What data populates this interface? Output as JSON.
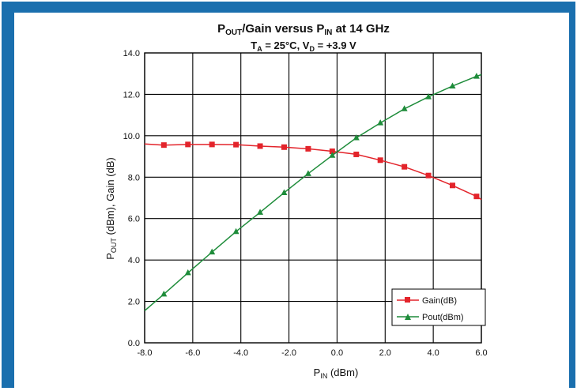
{
  "colors": {
    "frame": "#1a6fae",
    "gain": "#e3242b",
    "pout": "#1e8c3a",
    "grid": "#000000"
  },
  "chart_data": {
    "type": "line",
    "title": "P_OUT/Gain versus P_IN at 14 GHz",
    "title_parts": {
      "p": "P",
      "out_sub": "OUT",
      "mid": "/Gain versus P",
      "in_sub": "IN",
      "tail": " at 14 GHz"
    },
    "subtitle_parts": {
      "t": "T",
      "a_sub": "A",
      "t_tail": " = 25°C, V",
      "d_sub": "D",
      "tail": " = +3.9 V"
    },
    "xlabel_parts": {
      "p": "P",
      "sub": "IN",
      "tail": " (dBm)"
    },
    "ylabel_parts": {
      "p": "P",
      "sub": "OUT",
      "tail": " (dBm), Gain (dB)"
    },
    "xlim": [
      -8,
      6
    ],
    "ylim": [
      0,
      14
    ],
    "x_ticks": [
      "-8.0",
      "-6.0",
      "-4.0",
      "-2.0",
      "0.0",
      "2.0",
      "4.0",
      "6.0"
    ],
    "y_ticks": [
      "0.0",
      "2.0",
      "4.0",
      "6.0",
      "8.0",
      "10.0",
      "12.0",
      "14.0"
    ],
    "grid": true,
    "legend_position": "lower-right",
    "series": [
      {
        "name": "Gain(dB)",
        "marker": "square",
        "color": "#e3242b",
        "curve_x": [
          -8.0,
          -7.2,
          -6.2,
          -5.2,
          -4.2,
          -3.2,
          -2.2,
          -1.2,
          -0.2,
          0.8,
          1.8,
          2.8,
          3.8,
          4.8,
          5.8,
          6.0
        ],
        "curve_y": [
          9.6,
          9.55,
          9.58,
          9.58,
          9.57,
          9.5,
          9.45,
          9.37,
          9.25,
          9.1,
          8.82,
          8.5,
          8.08,
          7.6,
          7.07,
          6.92
        ],
        "marker_x": [
          -7.2,
          -6.2,
          -5.2,
          -4.2,
          -3.2,
          -2.2,
          -1.2,
          -0.2,
          0.8,
          1.8,
          2.8,
          3.8,
          4.8,
          5.8
        ],
        "marker_y": [
          9.55,
          9.58,
          9.58,
          9.57,
          9.5,
          9.45,
          9.37,
          9.25,
          9.1,
          8.82,
          8.5,
          8.08,
          7.6,
          7.07
        ]
      },
      {
        "name": "Pout(dBm)",
        "marker": "triangle",
        "color": "#1e8c3a",
        "curve_x": [
          -8.0,
          -7.2,
          -6.2,
          -5.2,
          -4.2,
          -3.2,
          -2.2,
          -1.2,
          -0.2,
          0.8,
          1.8,
          2.8,
          3.8,
          4.8,
          5.8,
          6.0
        ],
        "curve_y": [
          1.55,
          2.35,
          3.38,
          4.38,
          5.37,
          6.3,
          7.25,
          8.17,
          9.05,
          9.9,
          10.62,
          11.3,
          11.88,
          12.4,
          12.87,
          12.95
        ],
        "marker_x": [
          -7.2,
          -6.2,
          -5.2,
          -4.2,
          -3.2,
          -2.2,
          -1.2,
          -0.2,
          0.8,
          1.8,
          2.8,
          3.8,
          4.8,
          5.8
        ],
        "marker_y": [
          2.35,
          3.38,
          4.38,
          5.37,
          6.3,
          7.25,
          8.17,
          9.05,
          9.9,
          10.62,
          11.3,
          11.88,
          12.4,
          12.87
        ]
      }
    ]
  }
}
